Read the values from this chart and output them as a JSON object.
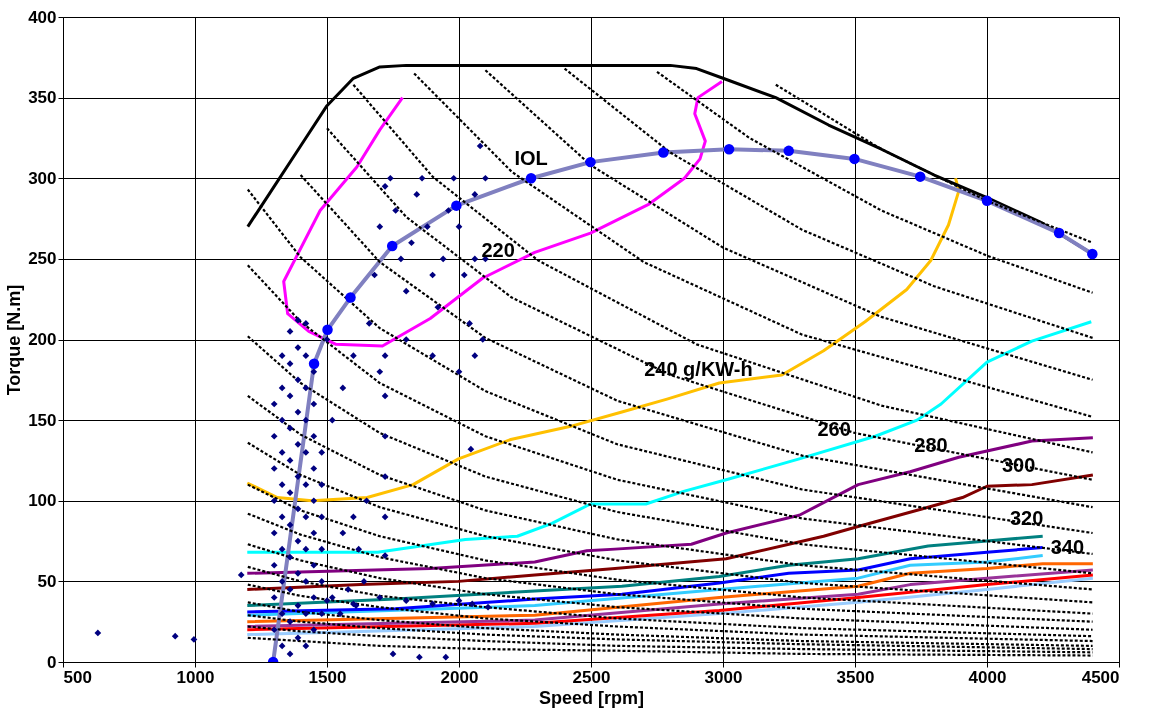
{
  "chart_data": {
    "type": "line",
    "xlabel": "Speed [rpm]",
    "ylabel": "Torque [N.m]",
    "xlim": [
      500,
      4500
    ],
    "ylim": [
      0,
      400
    ],
    "xticks": [
      500,
      1000,
      1500,
      2000,
      2500,
      3000,
      3500,
      4000,
      4500
    ],
    "yticks": [
      0,
      50,
      100,
      150,
      200,
      250,
      300,
      350,
      400
    ],
    "grid": true,
    "series": [
      {
        "type": "line",
        "color": "#000000",
        "line_style": "dashed",
        "x": [
          3200,
          3600,
          4000,
          4400
        ],
        "values": [
          358,
          318,
          286,
          260
        ]
      },
      {
        "type": "line",
        "color": "#000000",
        "line_style": "dashed",
        "x": [
          2750,
          3100,
          3600,
          4000,
          4400
        ],
        "values": [
          366,
          325,
          280,
          252,
          229
        ]
      },
      {
        "type": "line",
        "color": "#000000",
        "line_style": "dashed",
        "x": [
          2400,
          2800,
          3300,
          3800,
          4400
        ],
        "values": [
          368,
          316,
          268,
          233,
          201
        ]
      },
      {
        "type": "line",
        "color": "#000000",
        "line_style": "dashed",
        "x": [
          2100,
          2500,
          3000,
          3600,
          4400
        ],
        "values": [
          367,
          308,
          257,
          214,
          175
        ]
      },
      {
        "type": "line",
        "color": "#000000",
        "line_style": "dashed",
        "x": [
          1830,
          2200,
          2700,
          3300,
          4400
        ],
        "values": [
          365,
          304,
          248,
          203,
          152
        ]
      },
      {
        "type": "line",
        "color": "#000000",
        "line_style": "dashed",
        "x": [
          1600,
          1900,
          2300,
          2900,
          3600,
          4400
        ],
        "values": [
          358,
          301,
          249,
          197,
          159,
          130
        ]
      },
      {
        "type": "line",
        "color": "#000000",
        "line_style": "dashed",
        "x": [
          1500,
          1800,
          2200,
          2800,
          3500,
          4400
        ],
        "values": [
          331,
          276,
          226,
          178,
          142,
          113
        ]
      },
      {
        "type": "line",
        "color": "#000000",
        "line_style": "dashed",
        "x": [
          1400,
          1700,
          2100,
          2600,
          3300,
          4400
        ],
        "values": [
          302,
          248,
          201,
          162,
          128,
          96
        ]
      },
      {
        "type": "line",
        "color": "#000000",
        "line_style": "dashed",
        "x": [
          1200,
          1400,
          1700,
          2100,
          2600,
          3300,
          4400
        ],
        "values": [
          293,
          251,
          207,
          168,
          135,
          107,
          80
        ]
      },
      {
        "type": "line",
        "color": "#000000",
        "line_style": "dashed",
        "x": [
          1200,
          1400,
          1700,
          2100,
          2600,
          3300,
          4400
        ],
        "values": [
          246,
          211,
          173,
          140,
          113,
          89,
          67
        ]
      },
      {
        "type": "line",
        "color": "#000000",
        "line_style": "dashed",
        "x": [
          1200,
          1400,
          1700,
          2100,
          2600,
          3300,
          4400
        ],
        "values": [
          202,
          173,
          142,
          115,
          93,
          73,
          55
        ]
      },
      {
        "type": "line",
        "color": "#000000",
        "line_style": "dashed",
        "x": [
          1200,
          1400,
          1700,
          2100,
          2600,
          3300,
          4400
        ],
        "values": [
          165,
          141,
          116,
          94,
          76,
          60,
          45
        ]
      },
      {
        "type": "line",
        "color": "#000000",
        "line_style": "dashed",
        "x": [
          1200,
          1400,
          1700,
          2100,
          2600,
          3300,
          4400
        ],
        "values": [
          136,
          116,
          96,
          78,
          63,
          49,
          37
        ]
      },
      {
        "type": "line",
        "color": "#000000",
        "line_style": "dashed",
        "x": [
          1200,
          1400,
          1700,
          2100,
          2600,
          3300,
          4400
        ],
        "values": [
          110,
          94,
          78,
          63,
          51,
          40,
          30
        ]
      },
      {
        "type": "line",
        "color": "#000000",
        "line_style": "dashed",
        "x": [
          1200,
          1400,
          1700,
          2100,
          2600,
          3300,
          4400
        ],
        "values": [
          92,
          79,
          65,
          52,
          42,
          33,
          25
        ]
      },
      {
        "type": "line",
        "color": "#000000",
        "line_style": "dashed",
        "x": [
          1200,
          1400,
          1700,
          2100,
          2600,
          3300,
          4400
        ],
        "values": [
          73,
          63,
          52,
          42,
          34,
          27,
          20
        ]
      },
      {
        "type": "line",
        "color": "#000000",
        "line_style": "dashed",
        "x": [
          1200,
          1400,
          1700,
          2100,
          2600,
          3300,
          4400
        ],
        "values": [
          59,
          50,
          41,
          34,
          27,
          21,
          16
        ]
      },
      {
        "type": "line",
        "color": "#000000",
        "line_style": "dashed",
        "x": [
          1200,
          1400,
          1700,
          2100,
          2600,
          3300,
          4400
        ],
        "values": [
          48,
          41,
          34,
          27,
          22,
          17,
          13
        ]
      },
      {
        "type": "line",
        "color": "#000000",
        "line_style": "dashed",
        "x": [
          1200,
          1400,
          1700,
          2100,
          2600,
          3300,
          4400
        ],
        "values": [
          37,
          31,
          26,
          21,
          17,
          13,
          10
        ]
      },
      {
        "type": "line",
        "color": "#000000",
        "line_style": "dashed",
        "x": [
          1200,
          1400,
          1700,
          2100,
          2600,
          3300,
          4400
        ],
        "values": [
          29,
          25,
          21,
          17,
          14,
          11,
          8
        ]
      },
      {
        "type": "line",
        "color": "#000000",
        "line_style": "dashed",
        "x": [
          1200,
          1400,
          1700,
          2100,
          2600,
          3300,
          4400
        ],
        "values": [
          22,
          19,
          16,
          13,
          10,
          8,
          6
        ]
      },
      {
        "type": "line",
        "color": "#000000",
        "line_style": "dashed",
        "x": [
          1200,
          1400,
          1700,
          2100,
          2600,
          3300,
          4400
        ],
        "values": [
          15,
          13,
          10,
          8,
          7,
          5,
          4
        ]
      },
      {
        "type": "line",
        "color": "#99ccff",
        "line_style": "solid",
        "x": [
          1198,
          2287,
          2986,
          3512,
          4000,
          4401
        ],
        "values": [
          17,
          22,
          30,
          37,
          45,
          52
        ]
      },
      {
        "type": "line",
        "color": "#ff0000",
        "line_style": "solid",
        "x": [
          1198,
          2287,
          2986,
          3512,
          4000,
          4401
        ],
        "values": [
          20,
          24,
          32,
          40,
          48,
          54
        ]
      },
      {
        "type": "line",
        "color": "#993399",
        "line_style": "solid",
        "x": [
          1198,
          2287,
          2986,
          3512,
          3709,
          4000,
          4401
        ],
        "values": [
          22,
          26,
          36,
          42,
          48,
          52,
          57
        ]
      },
      {
        "type": "line",
        "color": "#ff6600",
        "line_style": "solid",
        "x": [
          1198,
          2287,
          2986,
          3512,
          3709,
          4000,
          4211,
          4401
        ],
        "values": [
          25,
          29,
          40,
          47,
          55,
          58,
          61,
          61
        ]
      },
      {
        "type": "line",
        "color": "#33ccff",
        "line_style": "solid",
        "x": [
          1198,
          2287,
          2986,
          3512,
          3709,
          4000,
          4211
        ],
        "values": [
          29,
          35,
          45,
          52,
          60,
          62,
          66
        ]
      },
      {
        "type": "line",
        "color": "#0000ff",
        "line_style": "solid",
        "x": [
          1198,
          1759,
          2287,
          2617,
          2986,
          3249,
          3512,
          3709,
          4000,
          4211
        ],
        "values": [
          31,
          33,
          39,
          42,
          49,
          55,
          57,
          64,
          68,
          71
        ]
      },
      {
        "type": "line",
        "color": "#008080",
        "line_style": "solid",
        "x": [
          1198,
          1759,
          2287,
          2617,
          2986,
          3249,
          3512,
          3777,
          4000,
          4211
        ],
        "values": [
          35,
          39,
          44,
          47,
          53,
          60,
          64,
          72,
          75,
          78
        ]
      },
      {
        "type": "line",
        "color": "#800000",
        "line_style": "solid",
        "x": [
          1198,
          1628,
          1998,
          2287,
          2591,
          3012,
          3381,
          3512,
          3777,
          3907,
          4000,
          4170,
          4401
        ],
        "values": [
          45,
          48,
          50,
          54,
          58,
          64,
          78,
          84,
          96,
          102,
          109,
          110,
          116
        ]
      },
      {
        "type": "line",
        "color": "#800080",
        "line_style": "solid",
        "x": [
          1198,
          1891,
          2287,
          2484,
          2591,
          2880,
          3012,
          3289,
          3512,
          3709,
          3893,
          4170,
          4401
        ],
        "values": [
          55,
          58,
          62,
          69,
          70,
          73,
          80,
          91,
          110,
          118,
          127,
          137,
          139
        ]
      },
      {
        "type": "line",
        "color": "#00ffff",
        "line_style": "solid",
        "x": [
          1198,
          1692,
          2024,
          2221,
          2352,
          2498,
          2708,
          2854,
          3012,
          3289,
          3577,
          3735,
          3826,
          4000,
          4170,
          4395
        ],
        "values": [
          68,
          68,
          76,
          78,
          86,
          98,
          98,
          106,
          113,
          126,
          140,
          150,
          160,
          186,
          199,
          211
        ]
      },
      {
        "type": "line",
        "color": "#ffc000",
        "line_style": "solid",
        "x": [
          1198,
          1312,
          1443,
          1652,
          1826,
          1998,
          2196,
          2419,
          2617,
          2788,
          2986,
          3223,
          3381,
          3538,
          3696,
          3787,
          3854,
          3893,
          3881
        ],
        "values": [
          111,
          102,
          100,
          102,
          110,
          126,
          138,
          146,
          155,
          163,
          173,
          178,
          193,
          211,
          231,
          249,
          271,
          292,
          300
        ]
      },
      {
        "type": "line",
        "color": "#ff00ff",
        "line_style": "solid",
        "x": [
          1786,
          1700,
          1613,
          1474,
          1336,
          1351,
          1431,
          1534,
          1710,
          1891,
          2089,
          2287,
          2498,
          2720,
          2854,
          2913,
          2933,
          2893,
          2905,
          2996
        ],
        "values": [
          350,
          330,
          307,
          280,
          236,
          216,
          205,
          197,
          196,
          213,
          238,
          254,
          266,
          284,
          300,
          312,
          323,
          340,
          350,
          360
        ]
      },
      {
        "type": "line",
        "color": "#000000",
        "line_style": "solid",
        "x": [
          1200,
          1300,
          1400,
          1500,
          1600,
          1700,
          1800,
          2800,
          2900,
          3000,
          3200,
          3400,
          3600,
          3800,
          4000,
          4200,
          4400
        ],
        "values": [
          270,
          295,
          320,
          345,
          362,
          369,
          370,
          370,
          368,
          362,
          350,
          333,
          318,
          302,
          288,
          273,
          253
        ]
      },
      {
        "type": "line",
        "color": "#8080c0",
        "line_style": "solid",
        "x": [
          1296,
          1451,
          1502,
          1589,
          1747,
          1990,
          2273,
          2498,
          2774,
          3023,
          3249,
          3498,
          3747,
          4000,
          4273,
          4399
        ],
        "values": [
          0,
          185,
          206,
          226,
          258,
          283,
          300,
          310,
          316,
          318,
          317,
          312,
          301,
          286,
          266,
          253
        ]
      },
      {
        "type": "scatter",
        "color": "#000080",
        "marker": "diamond",
        "x": [
          632,
          925,
          996,
          1175,
          1300,
          1300,
          1300,
          1300,
          1300,
          1300,
          1300,
          1300,
          1330,
          1330,
          1330,
          1330,
          1330,
          1330,
          1330,
          1330,
          1330,
          1330,
          1360,
          1360,
          1360,
          1360,
          1360,
          1360,
          1360,
          1360,
          1360,
          1360,
          1360,
          1390,
          1390,
          1390,
          1390,
          1390,
          1390,
          1390,
          1390,
          1390,
          1390,
          1390,
          1420,
          1420,
          1420,
          1420,
          1420,
          1420,
          1420,
          1420,
          1420,
          1420,
          1420,
          1450,
          1450,
          1450,
          1450,
          1450,
          1450,
          1450,
          1450,
          1450,
          1480,
          1480,
          1480,
          1480,
          1480,
          1480,
          1520,
          1550,
          1580,
          1610,
          1640,
          1560,
          1600,
          1620,
          1650,
          1520,
          1560,
          1600,
          1500,
          1720,
          1720,
          1720,
          1720,
          1720,
          1720,
          1660,
          1680,
          1700,
          1720,
          1740,
          1760,
          1780,
          1800,
          1820,
          1840,
          1860,
          1880,
          1900,
          1920,
          1940,
          1960,
          1980,
          2000,
          2020,
          2040,
          2060,
          2060,
          2060,
          2080,
          2100,
          2100,
          2090,
          1800,
          1900,
          2000,
          1700,
          1500,
          1600,
          1700,
          1800,
          1900,
          2000,
          2050,
          2110,
          1750,
          1850,
          1950,
          2045
        ],
        "values": [
          18,
          16,
          14,
          54,
          20,
          40,
          60,
          80,
          100,
          120,
          140,
          160,
          10,
          30,
          50,
          70,
          90,
          110,
          130,
          150,
          170,
          190,
          5,
          25,
          45,
          65,
          85,
          105,
          125,
          145,
          165,
          185,
          205,
          15,
          35,
          55,
          75,
          95,
          115,
          135,
          155,
          175,
          195,
          212,
          10,
          30,
          50,
          70,
          90,
          110,
          130,
          150,
          170,
          190,
          210,
          20,
          40,
          60,
          80,
          100,
          120,
          140,
          160,
          180,
          30,
          50,
          70,
          90,
          110,
          130,
          40,
          30,
          45,
          35,
          50,
          80,
          90,
          70,
          100,
          150,
          170,
          190,
          200,
          66,
          90,
          115,
          140,
          165,
          190,
          210,
          240,
          270,
          295,
          300,
          280,
          250,
          230,
          260,
          290,
          300,
          270,
          240,
          220,
          250,
          280,
          300,
          270,
          240,
          210,
          190,
          250,
          290,
          320,
          300,
          250,
          200,
          200,
          190,
          180,
          180,
          38,
          36,
          40,
          38,
          36,
          38,
          36,
          34,
          5,
          3,
          3,
          132
        ]
      },
      {
        "type": "scatter",
        "color": "#0000ff",
        "marker": "circle",
        "x": [
          1296,
          1451,
          1502,
          1589,
          1747,
          1990,
          2273,
          2498,
          2774,
          3023,
          3249,
          3498,
          3747,
          4000,
          4273,
          4399
        ],
        "values": [
          0,
          185,
          206,
          226,
          258,
          283,
          300,
          310,
          316,
          318,
          317,
          312,
          301,
          286,
          266,
          253
        ]
      }
    ],
    "annotations": [
      {
        "text": "IOL",
        "x": 2273,
        "y": 300
      },
      {
        "text": "220",
        "x": 2148,
        "y": 243
      },
      {
        "text": "240 g/KW-h",
        "x": 2907,
        "y": 169
      },
      {
        "text": "260",
        "x": 3421,
        "y": 132
      },
      {
        "text": "280",
        "x": 3788,
        "y": 122
      },
      {
        "text": "300",
        "x": 4120,
        "y": 110
      },
      {
        "text": "320",
        "x": 4150,
        "y": 77
      },
      {
        "text": "340",
        "x": 4211,
        "y": 71
      }
    ]
  }
}
